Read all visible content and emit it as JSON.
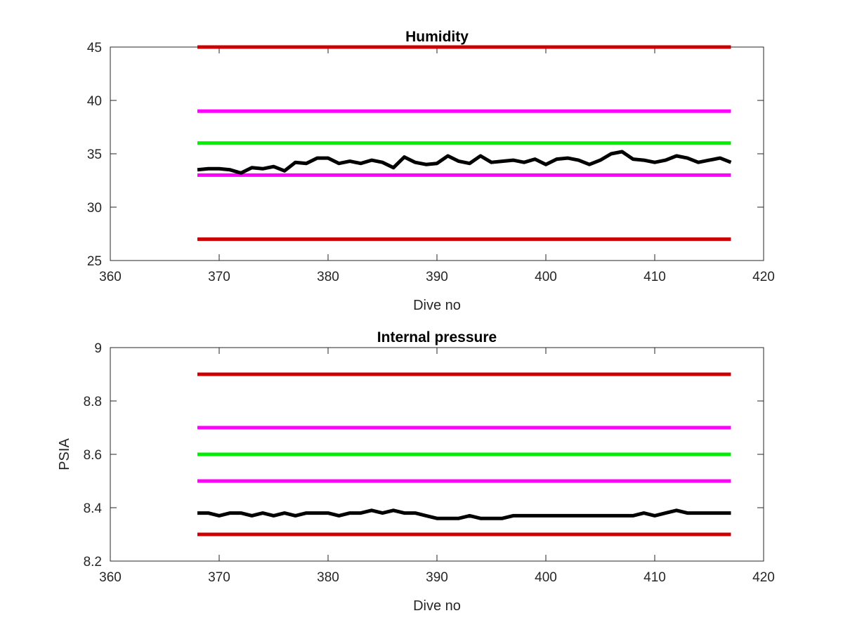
{
  "chart_data": [
    {
      "type": "line",
      "title": "Humidity",
      "xlabel": "Dive no",
      "ylabel": "",
      "xlim": [
        360,
        420
      ],
      "ylim": [
        25,
        45
      ],
      "xticks": [
        360,
        370,
        380,
        390,
        400,
        410,
        420
      ],
      "yticks": [
        25,
        30,
        35,
        40,
        45
      ],
      "grid": false,
      "series": [
        {
          "color": "#cc0000",
          "x": [
            368,
            417
          ],
          "y": [
            45,
            45
          ]
        },
        {
          "color": "#ff00ff",
          "x": [
            368,
            417
          ],
          "y": [
            39,
            39
          ]
        },
        {
          "color": "#00ee00",
          "x": [
            368,
            417
          ],
          "y": [
            36,
            36
          ]
        },
        {
          "color": "#ff00ff",
          "x": [
            368,
            417
          ],
          "y": [
            33,
            33
          ]
        },
        {
          "color": "#cc0000",
          "x": [
            368,
            417
          ],
          "y": [
            27,
            27
          ]
        },
        {
          "color": "#000000",
          "x": [
            368,
            369,
            370,
            371,
            372,
            373,
            374,
            375,
            376,
            377,
            378,
            379,
            380,
            381,
            382,
            383,
            384,
            385,
            386,
            387,
            388,
            389,
            390,
            391,
            392,
            393,
            394,
            395,
            396,
            397,
            398,
            399,
            400,
            401,
            402,
            403,
            404,
            405,
            406,
            407,
            408,
            409,
            410,
            411,
            412,
            413,
            414,
            415,
            416,
            417
          ],
          "y": [
            33.5,
            33.6,
            33.6,
            33.5,
            33.2,
            33.7,
            33.6,
            33.8,
            33.4,
            34.2,
            34.1,
            34.6,
            34.6,
            34.1,
            34.3,
            34.1,
            34.4,
            34.2,
            33.7,
            34.7,
            34.2,
            34.0,
            34.1,
            34.8,
            34.3,
            34.1,
            34.8,
            34.2,
            34.3,
            34.4,
            34.2,
            34.5,
            34.0,
            34.5,
            34.6,
            34.4,
            34.0,
            34.4,
            35.0,
            35.2,
            34.5,
            34.4,
            34.2,
            34.4,
            34.8,
            34.6,
            34.2,
            34.4,
            34.6,
            34.2
          ]
        }
      ]
    },
    {
      "type": "line",
      "title": "Internal pressure",
      "xlabel": "Dive no",
      "ylabel": "PSIA",
      "xlim": [
        360,
        420
      ],
      "ylim": [
        8.2,
        9
      ],
      "xticks": [
        360,
        370,
        380,
        390,
        400,
        410,
        420
      ],
      "yticks": [
        8.2,
        8.4,
        8.6,
        8.8,
        9
      ],
      "grid": false,
      "series": [
        {
          "color": "#cc0000",
          "x": [
            368,
            417
          ],
          "y": [
            8.9,
            8.9
          ]
        },
        {
          "color": "#ff00ff",
          "x": [
            368,
            417
          ],
          "y": [
            8.7,
            8.7
          ]
        },
        {
          "color": "#00ee00",
          "x": [
            368,
            417
          ],
          "y": [
            8.6,
            8.6
          ]
        },
        {
          "color": "#ff00ff",
          "x": [
            368,
            417
          ],
          "y": [
            8.5,
            8.5
          ]
        },
        {
          "color": "#cc0000",
          "x": [
            368,
            417
          ],
          "y": [
            8.3,
            8.3
          ]
        },
        {
          "color": "#000000",
          "x": [
            368,
            369,
            370,
            371,
            372,
            373,
            374,
            375,
            376,
            377,
            378,
            379,
            380,
            381,
            382,
            383,
            384,
            385,
            386,
            387,
            388,
            389,
            390,
            391,
            392,
            393,
            394,
            395,
            396,
            397,
            398,
            399,
            400,
            401,
            402,
            403,
            404,
            405,
            406,
            407,
            408,
            409,
            410,
            411,
            412,
            413,
            414,
            415,
            416,
            417
          ],
          "y": [
            8.38,
            8.38,
            8.37,
            8.38,
            8.38,
            8.37,
            8.38,
            8.37,
            8.38,
            8.37,
            8.38,
            8.38,
            8.38,
            8.37,
            8.38,
            8.38,
            8.39,
            8.38,
            8.39,
            8.38,
            8.38,
            8.37,
            8.36,
            8.36,
            8.36,
            8.37,
            8.36,
            8.36,
            8.36,
            8.37,
            8.37,
            8.37,
            8.37,
            8.37,
            8.37,
            8.37,
            8.37,
            8.37,
            8.37,
            8.37,
            8.37,
            8.38,
            8.37,
            8.38,
            8.39,
            8.38,
            8.38,
            8.38,
            8.38,
            8.38
          ]
        }
      ]
    }
  ]
}
